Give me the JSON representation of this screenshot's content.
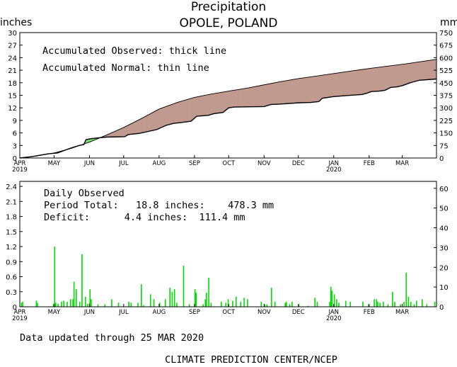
{
  "header": {
    "title": "Precipitation",
    "location": "OPOLE, POLAND",
    "left_unit": "inches",
    "right_unit": "mm"
  },
  "footer": {
    "updated": "Data updated through 25 MAR 2020",
    "credit": "CLIMATE PREDICTION CENTER/NCEP"
  },
  "colors": {
    "deficit_fill": "#c19a8f",
    "surplus_fill": "#7ddc6e",
    "daily_bar": "#00dd00",
    "axis": "#000000"
  },
  "chart_data": [
    {
      "type": "area",
      "notes": [
        "Accumulated Observed: thick line",
        "Accumulated Normal: thin line"
      ],
      "x_ticks": [
        {
          "label": "APR",
          "sub": "2019",
          "day": 0
        },
        {
          "label": "MAY",
          "sub": "",
          "day": 30
        },
        {
          "label": "JUN",
          "sub": "",
          "day": 61
        },
        {
          "label": "JUL",
          "sub": "",
          "day": 91
        },
        {
          "label": "AUG",
          "sub": "",
          "day": 122
        },
        {
          "label": "SEP",
          "sub": "",
          "day": 153
        },
        {
          "label": "OCT",
          "sub": "",
          "day": 183
        },
        {
          "label": "NOV",
          "sub": "",
          "day": 214
        },
        {
          "label": "DEC",
          "sub": "",
          "day": 244
        },
        {
          "label": "JAN",
          "sub": "2020",
          "day": 275
        },
        {
          "label": "FEB",
          "sub": "",
          "day": 306
        },
        {
          "label": "MAR",
          "sub": "",
          "day": 335
        }
      ],
      "xlim": [
        0,
        365
      ],
      "ylim": [
        0,
        30
      ],
      "y_ticks": [
        0,
        3,
        6,
        9,
        12,
        15,
        18,
        21,
        24,
        27,
        30
      ],
      "y2_ticks": [
        "0",
        "75",
        "150",
        "225",
        "300",
        "375",
        "450",
        "525",
        "600",
        "675",
        "750"
      ],
      "series": [
        {
          "name": "Accumulated Normal",
          "x": [
            0,
            15,
            30,
            45,
            61,
            76,
            91,
            107,
            122,
            138,
            153,
            168,
            183,
            199,
            214,
            229,
            244,
            260,
            275,
            290,
            306,
            320,
            335,
            350,
            365
          ],
          "y": [
            0,
            0.5,
            1.2,
            2.3,
            3.8,
            5.5,
            7.3,
            9.5,
            11.7,
            13.3,
            14.5,
            15.3,
            16.0,
            16.7,
            17.5,
            18.3,
            19.0,
            19.6,
            20.2,
            20.8,
            21.4,
            21.9,
            22.4,
            23.0,
            23.6
          ]
        },
        {
          "name": "Accumulated Observed",
          "x": [
            0,
            10,
            25,
            33,
            45,
            52,
            56,
            58,
            62,
            68,
            76,
            92,
            95,
            105,
            120,
            128,
            135,
            142,
            150,
            155,
            165,
            170,
            178,
            183,
            188,
            214,
            220,
            228,
            244,
            255,
            262,
            265,
            275,
            285,
            300,
            304,
            308,
            315,
            320,
            325,
            330,
            335,
            342,
            350,
            365
          ],
          "y": [
            0,
            0.3,
            1.0,
            1.2,
            2.4,
            3.0,
            3.2,
            4.4,
            4.6,
            4.8,
            5.0,
            5.1,
            5.6,
            5.9,
            6.8,
            7.8,
            8.3,
            8.5,
            8.8,
            10.0,
            10.2,
            10.6,
            10.9,
            12.0,
            12.2,
            12.3,
            12.8,
            12.9,
            13.2,
            13.3,
            13.5,
            14.3,
            14.7,
            14.9,
            15.2,
            15.5,
            15.9,
            16.0,
            16.2,
            16.9,
            17.0,
            17.3,
            18.0,
            18.6,
            18.9
          ]
        }
      ]
    },
    {
      "type": "bar",
      "notes": [
        "Daily Observed",
        "Period Total:   18.8 inches:    478.3 mm",
        "Deficit:      4.4 inches:  111.4 mm"
      ],
      "xlim": [
        0,
        365
      ],
      "ylim": [
        0,
        2.5
      ],
      "y_ticks": [
        "0",
        "0.3",
        "0.6",
        "0.9",
        "1.2",
        "1.5",
        "1.8",
        "2.1",
        "2.4"
      ],
      "y2_ticks": [
        "0",
        "10",
        "20",
        "30",
        "40",
        "50",
        "60"
      ],
      "series": [
        {
          "name": "Daily Observed",
          "day": [
            1,
            2,
            14,
            15,
            29,
            30,
            31,
            33,
            36,
            38,
            41,
            44,
            46,
            47,
            49,
            52,
            54,
            57,
            59,
            61,
            62,
            68,
            74,
            80,
            86,
            95,
            97,
            103,
            106,
            108,
            114,
            117,
            122,
            127,
            131,
            133,
            135,
            137,
            143,
            148,
            153,
            154,
            160,
            162,
            163,
            165,
            167,
            176,
            180,
            182,
            186,
            189,
            193,
            196,
            199,
            211,
            214,
            216,
            220,
            223,
            232,
            233,
            236,
            238,
            244,
            252,
            258,
            260,
            271,
            272,
            273,
            275,
            277,
            279,
            285,
            289,
            300,
            305,
            310,
            312,
            313,
            315,
            318,
            322,
            326,
            328,
            333,
            336,
            338,
            340,
            342,
            345,
            347,
            352,
            356,
            363
          ],
          "value": [
            0.08,
            0.1,
            0.12,
            0.08,
            0.05,
            1.2,
            0.08,
            0.06,
            0.1,
            0.12,
            0.1,
            0.15,
            0.15,
            0.5,
            0.35,
            0.1,
            1.05,
            0.2,
            0.06,
            0.35,
            0.15,
            0.05,
            0.05,
            0.15,
            0.08,
            0.1,
            0.08,
            0.08,
            0.45,
            0.03,
            0.25,
            0.15,
            0.08,
            0.15,
            0.38,
            0.3,
            0.35,
            0.08,
            0.82,
            0.05,
            0.35,
            0.28,
            0.05,
            0.15,
            0.28,
            0.58,
            0.08,
            0.1,
            0.08,
            0.15,
            0.12,
            0.2,
            0.1,
            0.18,
            0.15,
            0.1,
            0.05,
            0.05,
            0.38,
            0.1,
            0.08,
            0.1,
            0.05,
            0.1,
            0.05,
            0.02,
            0.18,
            0.1,
            0.1,
            0.4,
            0.32,
            0.25,
            0.15,
            0.08,
            0.12,
            0.1,
            0.1,
            0.05,
            0.15,
            0.15,
            0.1,
            0.08,
            0.1,
            0.05,
            0.3,
            0.1,
            0.05,
            0.1,
            0.68,
            0.2,
            0.1,
            0.05,
            0.12,
            0.15,
            0.05,
            0.1
          ]
        }
      ]
    }
  ]
}
